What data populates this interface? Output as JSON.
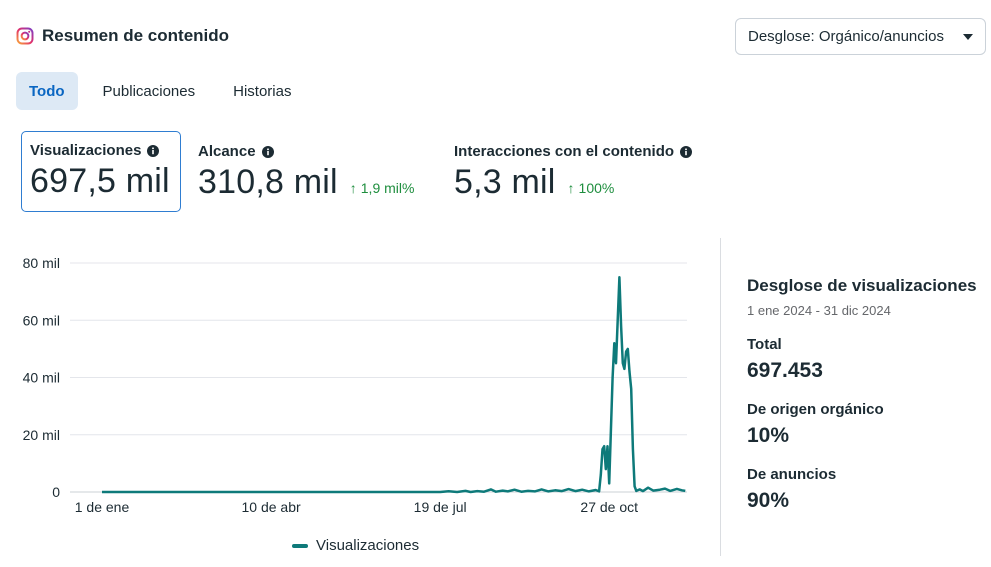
{
  "header": {
    "title": "Resumen de contenido",
    "icon": "instagram-icon",
    "breakdown_select": "Desglose: Orgánico/anuncios"
  },
  "tabs": [
    {
      "label": "Todo",
      "active": true
    },
    {
      "label": "Publicaciones",
      "active": false
    },
    {
      "label": "Historias",
      "active": false
    }
  ],
  "metrics": [
    {
      "label": "Visualizaciones",
      "value": "697,5 mil",
      "delta": "",
      "selected": true
    },
    {
      "label": "Alcance",
      "value": "310,8 mil",
      "delta": "1,9 mil%"
    },
    {
      "label": "Interacciones con el contenido",
      "value": "5,3 mil",
      "delta": "100%"
    }
  ],
  "colors": {
    "accent": "#0a66c2",
    "series": "#0e7a7a",
    "positive": "#1e8e3e",
    "grid": "#e4e6eb"
  },
  "chart_data": {
    "type": "line",
    "ytick_labels": [
      "0",
      "20 mil",
      "40 mil",
      "60 mil",
      "80 mil"
    ],
    "ylim": [
      0,
      80000
    ],
    "xtick_labels": [
      "1 de ene",
      "10 de abr",
      "19 de jul",
      "27 de oct"
    ],
    "grid": true,
    "legend": "bottom",
    "series": [
      {
        "name": "Visualizaciones",
        "points": [
          [
            0,
            0
          ],
          [
            200,
            0
          ],
          [
            205,
            250
          ],
          [
            210,
            0
          ],
          [
            215,
            400
          ],
          [
            218,
            0
          ],
          [
            222,
            300
          ],
          [
            226,
            100
          ],
          [
            230,
            900
          ],
          [
            233,
            100
          ],
          [
            237,
            500
          ],
          [
            240,
            200
          ],
          [
            244,
            800
          ],
          [
            248,
            100
          ],
          [
            252,
            400
          ],
          [
            256,
            200
          ],
          [
            260,
            900
          ],
          [
            264,
            200
          ],
          [
            268,
            600
          ],
          [
            272,
            300
          ],
          [
            276,
            1000
          ],
          [
            280,
            300
          ],
          [
            284,
            800
          ],
          [
            288,
            200
          ],
          [
            292,
            700
          ],
          [
            294,
            200
          ],
          [
            295,
            6000
          ],
          [
            296,
            15000
          ],
          [
            297,
            16000
          ],
          [
            298,
            8000
          ],
          [
            299,
            16000
          ],
          [
            300,
            3000
          ],
          [
            302,
            40000
          ],
          [
            303,
            52000
          ],
          [
            304,
            45000
          ],
          [
            305,
            60000
          ],
          [
            306,
            75000
          ],
          [
            307,
            58000
          ],
          [
            308,
            45000
          ],
          [
            309,
            43000
          ],
          [
            310,
            49000
          ],
          [
            311,
            50000
          ],
          [
            312,
            42000
          ],
          [
            313,
            36000
          ],
          [
            314,
            15000
          ],
          [
            315,
            2000
          ],
          [
            316,
            400
          ],
          [
            318,
            900
          ],
          [
            320,
            300
          ],
          [
            323,
            1500
          ],
          [
            326,
            500
          ],
          [
            330,
            800
          ],
          [
            333,
            1200
          ],
          [
            336,
            400
          ],
          [
            340,
            1100
          ],
          [
            343,
            600
          ],
          [
            345,
            400
          ]
        ]
      }
    ]
  },
  "side_panel": {
    "title": "Desglose de visualizaciones",
    "date_range": "1 ene 2024 - 31 dic 2024",
    "total_label": "Total",
    "total_value": "697.453",
    "organic_label": "De origen orgánico",
    "organic_value": "10%",
    "ads_label": "De anuncios",
    "ads_value": "90%"
  }
}
